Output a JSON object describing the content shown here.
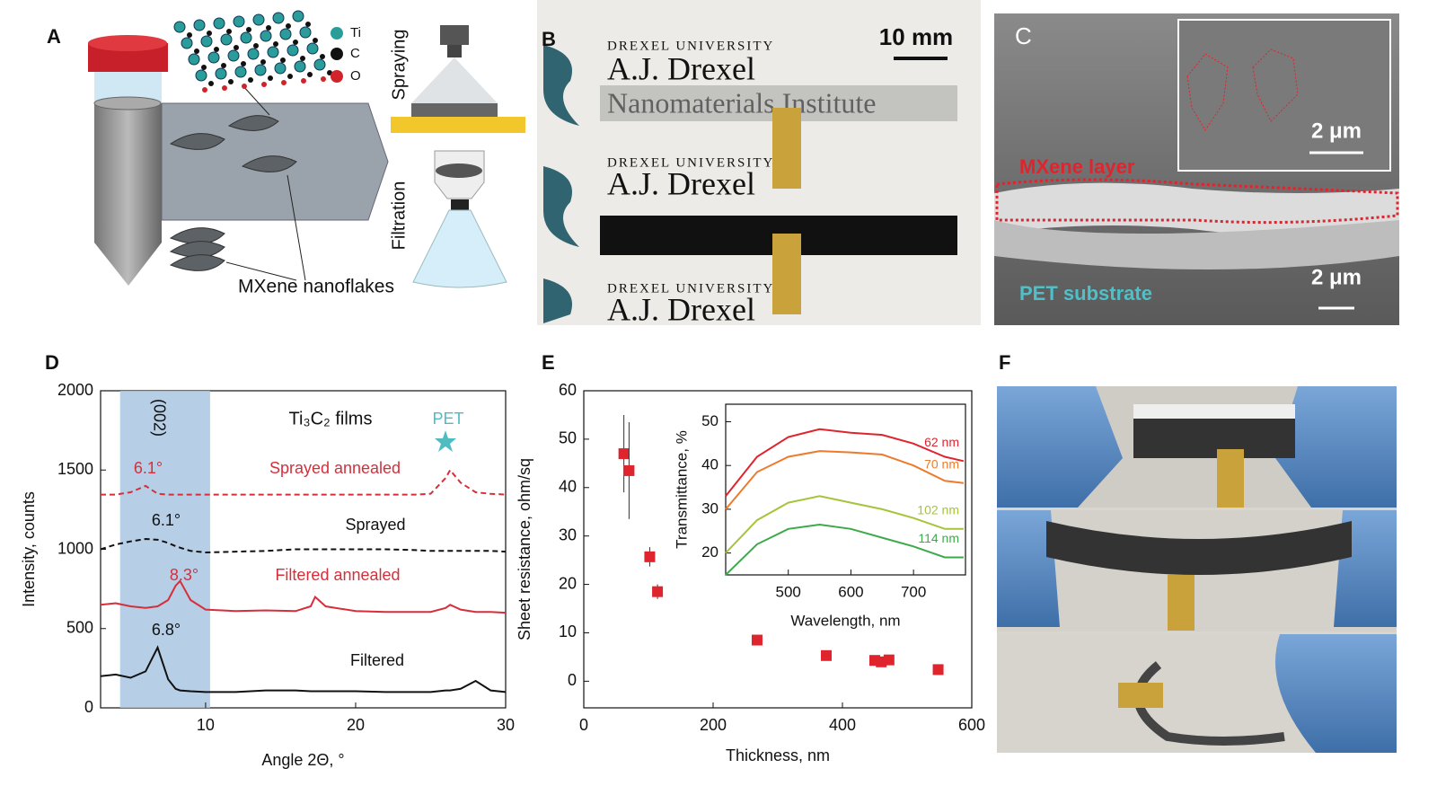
{
  "panels": {
    "a": "A",
    "b": "B",
    "c": "C",
    "d": "D",
    "e": "E",
    "f": "F"
  },
  "panel_a": {
    "legend": [
      "Ti",
      "C",
      "O"
    ],
    "spraying": "Spraying",
    "filtration": "Filtration",
    "flakes": "MXene nanoflakes"
  },
  "panel_b": {
    "university": "DREXEL UNIVERSITY",
    "name": "A.J. Drexel",
    "institute": "Nanomaterials Institute",
    "scale": "10 mm"
  },
  "panel_c": {
    "layer": "MXene layer",
    "substrate": "PET substrate",
    "scale_inset": "2 μm",
    "scale_main": "2 μm"
  },
  "chart_data": [
    {
      "type": "line",
      "xlabel": "Angle 2Θ, °",
      "ylabel": "Intensity, counts",
      "title": "Ti₃C₂ films",
      "band": [
        4.3,
        10.3
      ],
      "band_label": "(002)",
      "band_color": "#a9c6e2",
      "marker_label": "PET",
      "marker_color": "#4fbcc2",
      "xlim": [
        3,
        30
      ],
      "xticks": [
        10,
        20,
        30
      ],
      "ylim": [
        0,
        2000
      ],
      "yticks": [
        0,
        500,
        1000,
        1500,
        2000
      ],
      "x": [
        3,
        4,
        5,
        6,
        6.8,
        7.5,
        8,
        8.3,
        9,
        10,
        12,
        14,
        16,
        17,
        17.3,
        18,
        20,
        22,
        24,
        25,
        26,
        26.3,
        27,
        28,
        29,
        30
      ],
      "series": [
        {
          "name": "Filtered",
          "color": "#111111",
          "dash": false,
          "peak_label": "6.8°",
          "values": [
            200,
            210,
            190,
            230,
            380,
            180,
            120,
            110,
            105,
            100,
            100,
            110,
            110,
            105,
            105,
            105,
            105,
            100,
            100,
            100,
            110,
            110,
            120,
            170,
            110,
            100
          ]
        },
        {
          "name": "Filtered annealed",
          "color": "#d62f3a",
          "dash": false,
          "peak_label": "8.3°",
          "values": [
            650,
            660,
            640,
            630,
            640,
            680,
            770,
            800,
            680,
            620,
            610,
            615,
            610,
            640,
            700,
            640,
            610,
            605,
            605,
            605,
            630,
            650,
            620,
            605,
            605,
            600
          ]
        },
        {
          "name": "Sprayed",
          "color": "#111111",
          "dash": true,
          "peak_label": "6.1°",
          "values": [
            1000,
            1030,
            1050,
            1065,
            1060,
            1040,
            1020,
            1010,
            990,
            980,
            985,
            990,
            1000,
            1000,
            1000,
            1000,
            1000,
            1000,
            995,
            990,
            990,
            990,
            990,
            990,
            990,
            985
          ]
        },
        {
          "name": "Sprayed annealed",
          "color": "#d62f3a",
          "dash": true,
          "peak_label": "6.1°",
          "values": [
            1345,
            1345,
            1360,
            1400,
            1350,
            1345,
            1345,
            1345,
            1345,
            1345,
            1345,
            1345,
            1345,
            1345,
            1345,
            1345,
            1345,
            1345,
            1345,
            1350,
            1450,
            1500,
            1420,
            1360,
            1350,
            1345
          ]
        }
      ]
    },
    {
      "type": "scatter",
      "xlabel": "Thickness, nm",
      "ylabel": "Sheet resistance, ohm/sq",
      "color": "#e0242e",
      "xlim": [
        0,
        600
      ],
      "xticks": [
        0,
        200,
        400,
        600
      ],
      "ylim": [
        -5.5,
        60
      ],
      "yticks": [
        0,
        10,
        20,
        30,
        40,
        50,
        60
      ],
      "x": [
        62,
        70,
        102,
        114,
        268,
        375,
        450,
        460,
        472,
        548
      ],
      "values": [
        47,
        43.5,
        25.7,
        18.5,
        8.5,
        5.3,
        4.3,
        4,
        4.4,
        2.4
      ],
      "errors": [
        8,
        10,
        2,
        1.5,
        0.6,
        0.8,
        0.8,
        1,
        1,
        1
      ]
    },
    {
      "type": "line",
      "xlabel": "Wavelength, nm",
      "ylabel": "Transmittance, %",
      "xlim": [
        400,
        783
      ],
      "xticks": [
        500,
        600,
        700
      ],
      "ylim": [
        15,
        54
      ],
      "yticks": [
        20,
        30,
        40,
        50
      ],
      "x": [
        400,
        450,
        500,
        550,
        600,
        650,
        700,
        750,
        780
      ],
      "series": [
        {
          "name": "62 nm",
          "color": "#e0242e",
          "values": [
            33,
            42,
            46.5,
            48.3,
            47.5,
            47,
            45,
            42,
            41
          ]
        },
        {
          "name": "70 nm",
          "color": "#ee7a2c",
          "values": [
            30,
            38.5,
            42,
            43.3,
            43,
            42.5,
            40,
            36.5,
            36
          ]
        },
        {
          "name": "102 nm",
          "color": "#a6c43a",
          "values": [
            20,
            27.5,
            31.5,
            33,
            31.5,
            30,
            28,
            25.5,
            25.5
          ]
        },
        {
          "name": "114 nm",
          "color": "#3daa4a",
          "values": [
            15,
            22,
            25.5,
            26.5,
            25.5,
            23.5,
            21.5,
            19,
            19
          ]
        }
      ]
    }
  ]
}
